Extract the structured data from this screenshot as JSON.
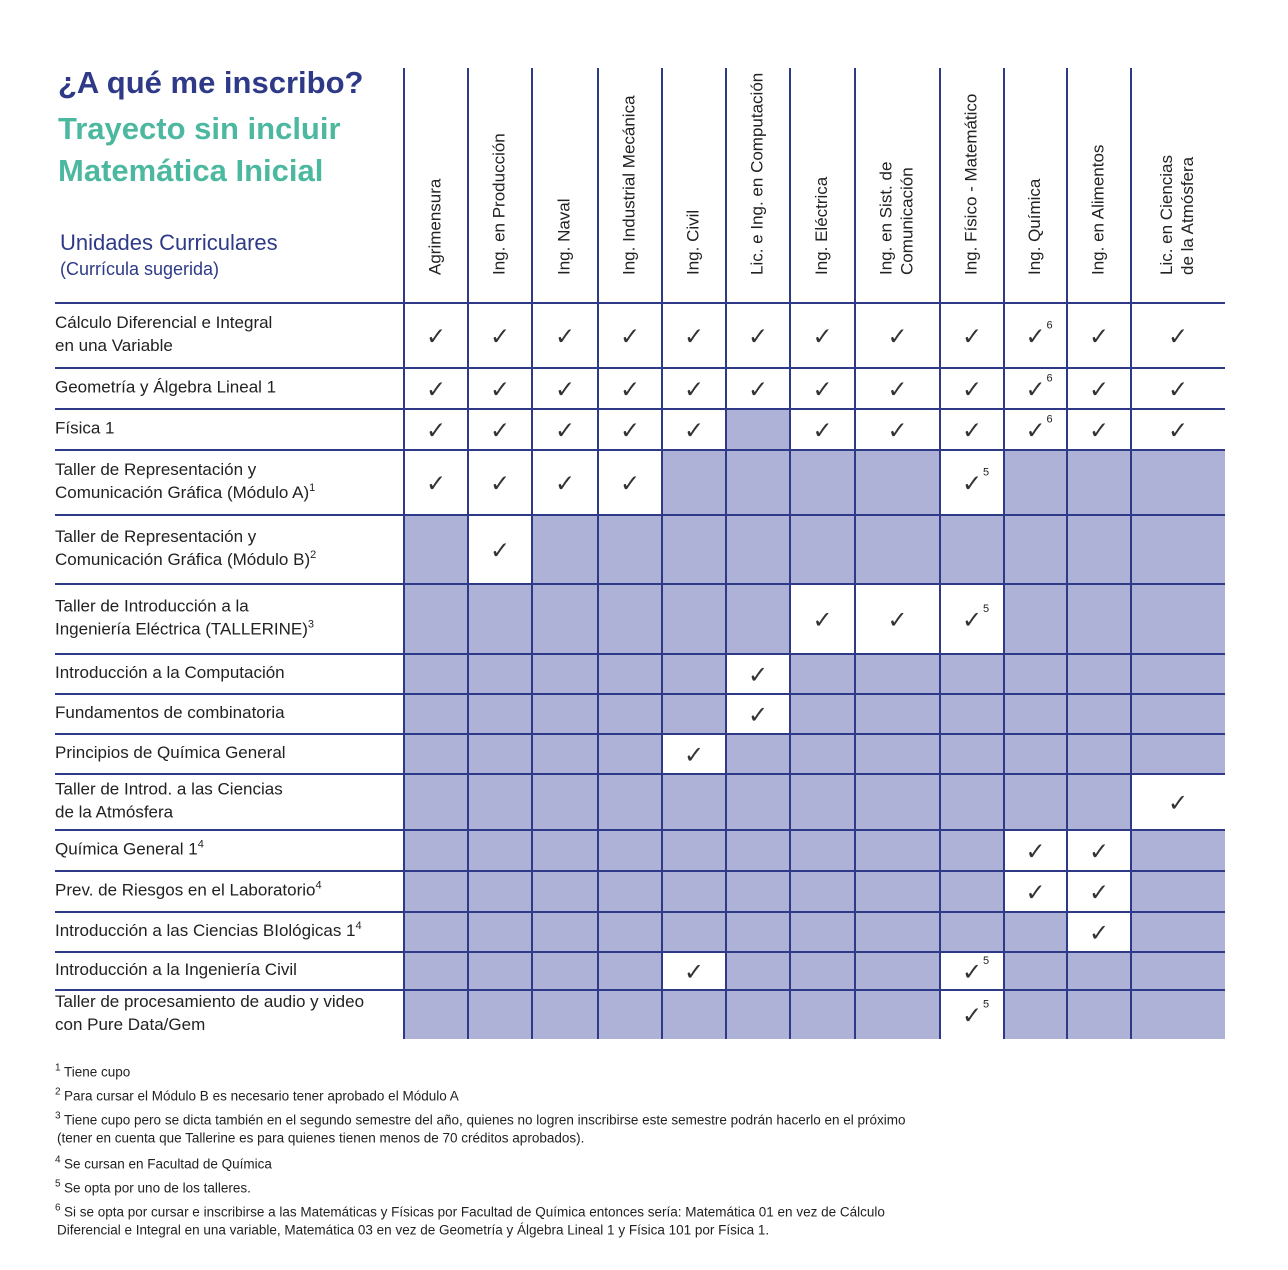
{
  "header": {
    "title": "¿A qué me inscribo?",
    "subtitle": [
      "Trayecto sin incluir",
      "Matemática Inicial"
    ],
    "section": "Unidades Curriculares",
    "section_note": "(Currícula sugerida)"
  },
  "columns": [
    [
      "Agrimensura"
    ],
    [
      "Ing. en Producción"
    ],
    [
      "Ing. Naval"
    ],
    [
      "Ing. Industrial Mecánica"
    ],
    [
      "Ing. Civil"
    ],
    [
      "Lic. e Ing. en Computación"
    ],
    [
      "Ing. Eléctrica"
    ],
    [
      "Ing. en Sist. de",
      "Comunicación"
    ],
    [
      "Ing. Físico - Matemático"
    ],
    [
      "Ing. Química"
    ],
    [
      "Ing. en Alimentos"
    ],
    [
      "Lic. en Ciencias",
      "de la Atmósfera"
    ]
  ],
  "rows": [
    {
      "label": [
        "Cálculo Diferencial e Integral",
        "en una Variable"
      ],
      "cells": [
        "✓",
        "✓",
        "✓",
        "✓",
        "✓",
        "✓",
        "✓",
        "✓",
        "✓",
        {
          "mark": "✓",
          "note": "6"
        },
        "✓",
        "✓"
      ]
    },
    {
      "label": [
        "Geometría y Álgebra Lineal 1"
      ],
      "cells": [
        "✓",
        "✓",
        "✓",
        "✓",
        "✓",
        "✓",
        "✓",
        "✓",
        "✓",
        {
          "mark": "✓",
          "note": "6"
        },
        "✓",
        "✓"
      ]
    },
    {
      "label": [
        "Física 1"
      ],
      "cells": [
        "✓",
        "✓",
        "✓",
        "✓",
        "✓",
        null,
        "✓",
        "✓",
        "✓",
        {
          "mark": "✓",
          "note": "6"
        },
        "✓",
        "✓"
      ]
    },
    {
      "label": [
        "Taller de Representación y",
        "Comunicación Gráfica (Módulo A)"
      ],
      "note": "1",
      "cells": [
        "✓",
        "✓",
        "✓",
        "✓",
        null,
        null,
        null,
        null,
        {
          "mark": "✓",
          "note": "5"
        },
        null,
        null,
        null
      ]
    },
    {
      "label": [
        "Taller de Representación y",
        "Comunicación Gráfica (Módulo B)"
      ],
      "note": "2",
      "cells": [
        null,
        "✓",
        null,
        null,
        null,
        null,
        null,
        null,
        null,
        null,
        null,
        null
      ]
    },
    {
      "label": [
        "Taller de Introducción a la",
        "Ingeniería Eléctrica (TALLERINE)"
      ],
      "note": "3",
      "cells": [
        null,
        null,
        null,
        null,
        null,
        null,
        "✓",
        "✓",
        {
          "mark": "✓",
          "note": "5"
        },
        null,
        null,
        null
      ]
    },
    {
      "label": [
        "Introducción a la Computación"
      ],
      "cells": [
        null,
        null,
        null,
        null,
        null,
        "✓",
        null,
        null,
        null,
        null,
        null,
        null
      ]
    },
    {
      "label": [
        "Fundamentos de combinatoria"
      ],
      "cells": [
        null,
        null,
        null,
        null,
        null,
        "✓",
        null,
        null,
        null,
        null,
        null,
        null
      ]
    },
    {
      "label": [
        "Principios de Química General"
      ],
      "cells": [
        null,
        null,
        null,
        null,
        "✓",
        null,
        null,
        null,
        null,
        null,
        null,
        null
      ]
    },
    {
      "label": [
        "Taller de Introd. a las Ciencias",
        "de la Atmósfera"
      ],
      "cells": [
        null,
        null,
        null,
        null,
        null,
        null,
        null,
        null,
        null,
        null,
        null,
        "✓"
      ]
    },
    {
      "label": [
        "Química General 1"
      ],
      "note": "4",
      "cells": [
        null,
        null,
        null,
        null,
        null,
        null,
        null,
        null,
        null,
        "✓",
        "✓",
        null
      ]
    },
    {
      "label": [
        "Prev. de Riesgos en el Laboratorio"
      ],
      "note": "4",
      "cells": [
        null,
        null,
        null,
        null,
        null,
        null,
        null,
        null,
        null,
        "✓",
        "✓",
        null
      ]
    },
    {
      "label": [
        "Introducción a las Ciencias BIológicas 1"
      ],
      "note": "4",
      "cells": [
        null,
        null,
        null,
        null,
        null,
        null,
        null,
        null,
        null,
        null,
        "✓",
        null
      ]
    },
    {
      "label": [
        "Introducción a la Ingeniería Civil"
      ],
      "cells": [
        null,
        null,
        null,
        null,
        "✓",
        null,
        null,
        null,
        {
          "mark": "✓",
          "note": "5"
        },
        null,
        null,
        null
      ]
    },
    {
      "label": [
        "Taller de procesamiento de audio y video",
        "con Pure Data/Gem"
      ],
      "cells": [
        null,
        null,
        null,
        null,
        null,
        null,
        null,
        null,
        {
          "mark": "✓",
          "note": "5"
        },
        null,
        null,
        null
      ]
    }
  ],
  "footnotes": [
    {
      "num": "1",
      "lines": [
        "Tiene cupo"
      ]
    },
    {
      "num": "2",
      "lines": [
        "Para cursar el Módulo B es necesario tener aprobado el Módulo A"
      ]
    },
    {
      "num": "3",
      "lines": [
        "Tiene cupo pero se dicta también en el segundo semestre del año, quienes no logren inscribirse este semestre podrán hacerlo en el próximo",
        "(tener en cuenta que Tallerine es para quienes tienen menos de 70 créditos aprobados)."
      ]
    },
    {
      "num": "4",
      "lines": [
        "Se cursan en Facultad de Química"
      ]
    },
    {
      "num": "5",
      "lines": [
        "Se opta por uno de los talleres."
      ]
    },
    {
      "num": "6",
      "lines": [
        "Si se opta por cursar e inscribirse a las Matemáticas y Físicas por Facultad de Química entonces sería: Matemática 01 en vez de Cálculo",
        "Diferencial e Integral en una variable, Matemática 03 en vez de Geometría y Álgebra Lineal 1 y Física 101  por Física 1."
      ]
    }
  ]
}
